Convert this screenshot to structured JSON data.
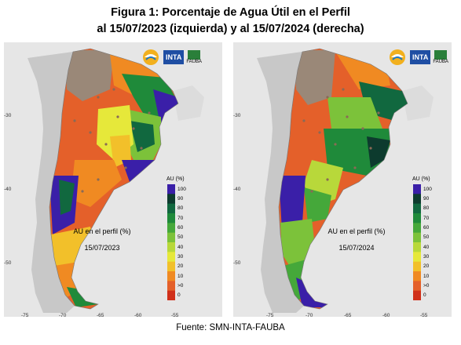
{
  "title_line1": "Figura 1: Porcentaje de Agua Útil en el Perfil",
  "title_line2": "al 15/07/2023 (izquierda) y al 15/07/2024 (derecha)",
  "footer": "Fuente: SMN-INTA-FAUBA",
  "logos": {
    "inta": "INTA",
    "fauba": "FAUBA"
  },
  "legend": {
    "title": "AU (%)",
    "ticks": [
      "100",
      "90",
      "80",
      "70",
      "60",
      "50",
      "40",
      "30",
      "20",
      "10",
      ">0",
      "0"
    ],
    "colors": [
      "#3a1fa8",
      "#0d3b2e",
      "#11683f",
      "#1f8a3a",
      "#45a83a",
      "#7cc23a",
      "#b8d83a",
      "#e6e83a",
      "#f2c02a",
      "#f08a22",
      "#e4602a",
      "#d0301a"
    ]
  },
  "axes": {
    "x_ticks": [
      "-75",
      "-70",
      "-65",
      "-60",
      "-55"
    ],
    "y_ticks": [
      "-30",
      "-40",
      "-50"
    ]
  },
  "maps": [
    {
      "label_line1": "AU en el perfil (%)",
      "label_line2": "15/07/2023"
    },
    {
      "label_line1": "AU en el perfil (%)",
      "label_line2": "15/07/2024"
    }
  ]
}
